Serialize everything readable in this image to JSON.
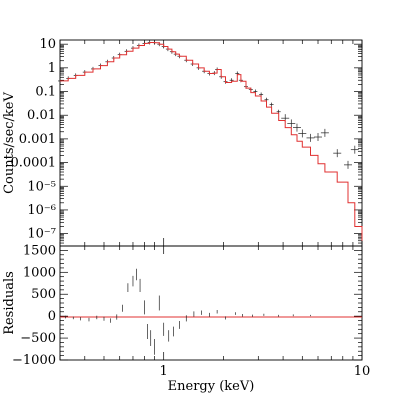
{
  "chart_data": [
    {
      "type": "line",
      "panel": "spectrum",
      "ylabel": "Counts/sec/keV",
      "xscale": "log",
      "yscale": "log",
      "xlim": [
        0.3,
        10
      ],
      "ylim": [
        3e-08,
        15
      ],
      "ytick_labels": [
        "10",
        "1",
        "0.1",
        "0.01",
        "0.001",
        "0.0001",
        "10⁻⁵",
        "10⁻⁶",
        "10⁻⁷"
      ],
      "ytick_values": [
        10,
        1,
        0.1,
        0.01,
        0.001,
        0.0001,
        1e-05,
        1e-06,
        1e-07
      ],
      "series": [
        {
          "kind": "data",
          "color": "#222222",
          "x": [
            0.3,
            0.33,
            0.36,
            0.4,
            0.44,
            0.48,
            0.52,
            0.56,
            0.6,
            0.65,
            0.7,
            0.75,
            0.8,
            0.85,
            0.9,
            0.95,
            1.0,
            1.05,
            1.1,
            1.15,
            1.2,
            1.3,
            1.4,
            1.5,
            1.6,
            1.7,
            1.8,
            1.86,
            1.95,
            2.05,
            2.2,
            2.35,
            2.45,
            2.6,
            2.75,
            2.9,
            3.1,
            3.3,
            3.5,
            3.8,
            4.1,
            4.4,
            4.7,
            5.0,
            5.5,
            6.0,
            6.5,
            7.5,
            8.5,
            9.2
          ],
          "y": [
            0.28,
            0.36,
            0.48,
            0.66,
            0.9,
            1.25,
            1.8,
            2.6,
            3.6,
            5.0,
            6.8,
            8.8,
            10.8,
            11.8,
            11.5,
            10.0,
            8.0,
            6.2,
            4.8,
            3.8,
            3.1,
            2.1,
            1.45,
            1.0,
            0.72,
            0.58,
            0.6,
            0.85,
            0.42,
            0.26,
            0.3,
            0.58,
            0.3,
            0.16,
            0.12,
            0.1,
            0.075,
            0.045,
            0.028,
            0.014,
            0.0075,
            0.0045,
            0.003,
            0.0017,
            0.0011,
            0.0012,
            0.0018,
            0.00025,
            8e-05,
            0.00035
          ]
        },
        {
          "kind": "model",
          "color": "#e03030",
          "x": [
            0.3,
            0.33,
            0.36,
            0.4,
            0.44,
            0.48,
            0.52,
            0.56,
            0.6,
            0.65,
            0.7,
            0.75,
            0.8,
            0.85,
            0.9,
            0.95,
            1.0,
            1.05,
            1.1,
            1.15,
            1.2,
            1.3,
            1.4,
            1.5,
            1.6,
            1.7,
            1.8,
            1.86,
            1.95,
            2.05,
            2.2,
            2.35,
            2.45,
            2.6,
            2.75,
            2.9,
            3.1,
            3.3,
            3.5,
            3.8,
            4.1,
            4.4,
            4.7,
            5.0,
            5.5,
            6.0,
            6.5,
            7.5,
            8.5,
            9.2,
            10.0
          ],
          "y": [
            0.28,
            0.36,
            0.48,
            0.66,
            0.9,
            1.25,
            1.8,
            2.6,
            3.6,
            5.0,
            6.8,
            8.8,
            10.8,
            11.8,
            11.5,
            10.0,
            8.0,
            6.2,
            4.8,
            3.8,
            3.1,
            2.1,
            1.45,
            1.0,
            0.72,
            0.58,
            0.6,
            0.85,
            0.42,
            0.24,
            0.27,
            0.52,
            0.27,
            0.14,
            0.09,
            0.065,
            0.04,
            0.022,
            0.012,
            0.006,
            0.003,
            0.0015,
            0.0008,
            0.00045,
            0.0002,
            9e-05,
            4e-05,
            1.5e-05,
            2e-06,
            2e-07,
            5e-08
          ]
        }
      ]
    },
    {
      "type": "scatter",
      "panel": "residuals",
      "xlabel": "Energy (keV)",
      "ylabel": "Residuals",
      "xscale": "log",
      "xlim": [
        0.3,
        10
      ],
      "ylim": [
        -1000,
        1600
      ],
      "xtick_labels": [
        "1",
        "10"
      ],
      "xtick_values": [
        1,
        10
      ],
      "ytick_labels": [
        "1500",
        "1000",
        "500",
        "0",
        "−500",
        "−1000"
      ],
      "ytick_values": [
        1500,
        1000,
        500,
        0,
        -500,
        -1000
      ],
      "series": [
        {
          "kind": "residual",
          "color": "#444444",
          "x": [
            0.32,
            0.35,
            0.38,
            0.42,
            0.46,
            0.5,
            0.54,
            0.58,
            0.62,
            0.66,
            0.7,
            0.73,
            0.76,
            0.8,
            0.83,
            0.86,
            0.9,
            0.95,
            1.0,
            1.06,
            1.12,
            1.2,
            1.3,
            1.42,
            1.55,
            1.7,
            1.86,
            2.05,
            2.3,
            2.5,
            2.8,
            3.2,
            3.8,
            4.5,
            5.5
          ],
          "y": [
            -20,
            -40,
            -60,
            -80,
            -30,
            -60,
            -100,
            -20,
            180,
            650,
            800,
            950,
            700,
            200,
            -350,
            -500,
            -700,
            300,
            -300,
            -450,
            -350,
            -200,
            -50,
            50,
            80,
            30,
            100,
            -40,
            60,
            20,
            10,
            30,
            10,
            20,
            15
          ],
          "err": [
            30,
            30,
            35,
            40,
            40,
            45,
            50,
            60,
            80,
            100,
            120,
            130,
            150,
            160,
            170,
            180,
            180,
            170,
            150,
            130,
            110,
            90,
            70,
            60,
            50,
            45,
            40,
            35,
            30,
            30,
            25,
            25,
            20,
            20,
            15
          ]
        }
      ]
    }
  ]
}
